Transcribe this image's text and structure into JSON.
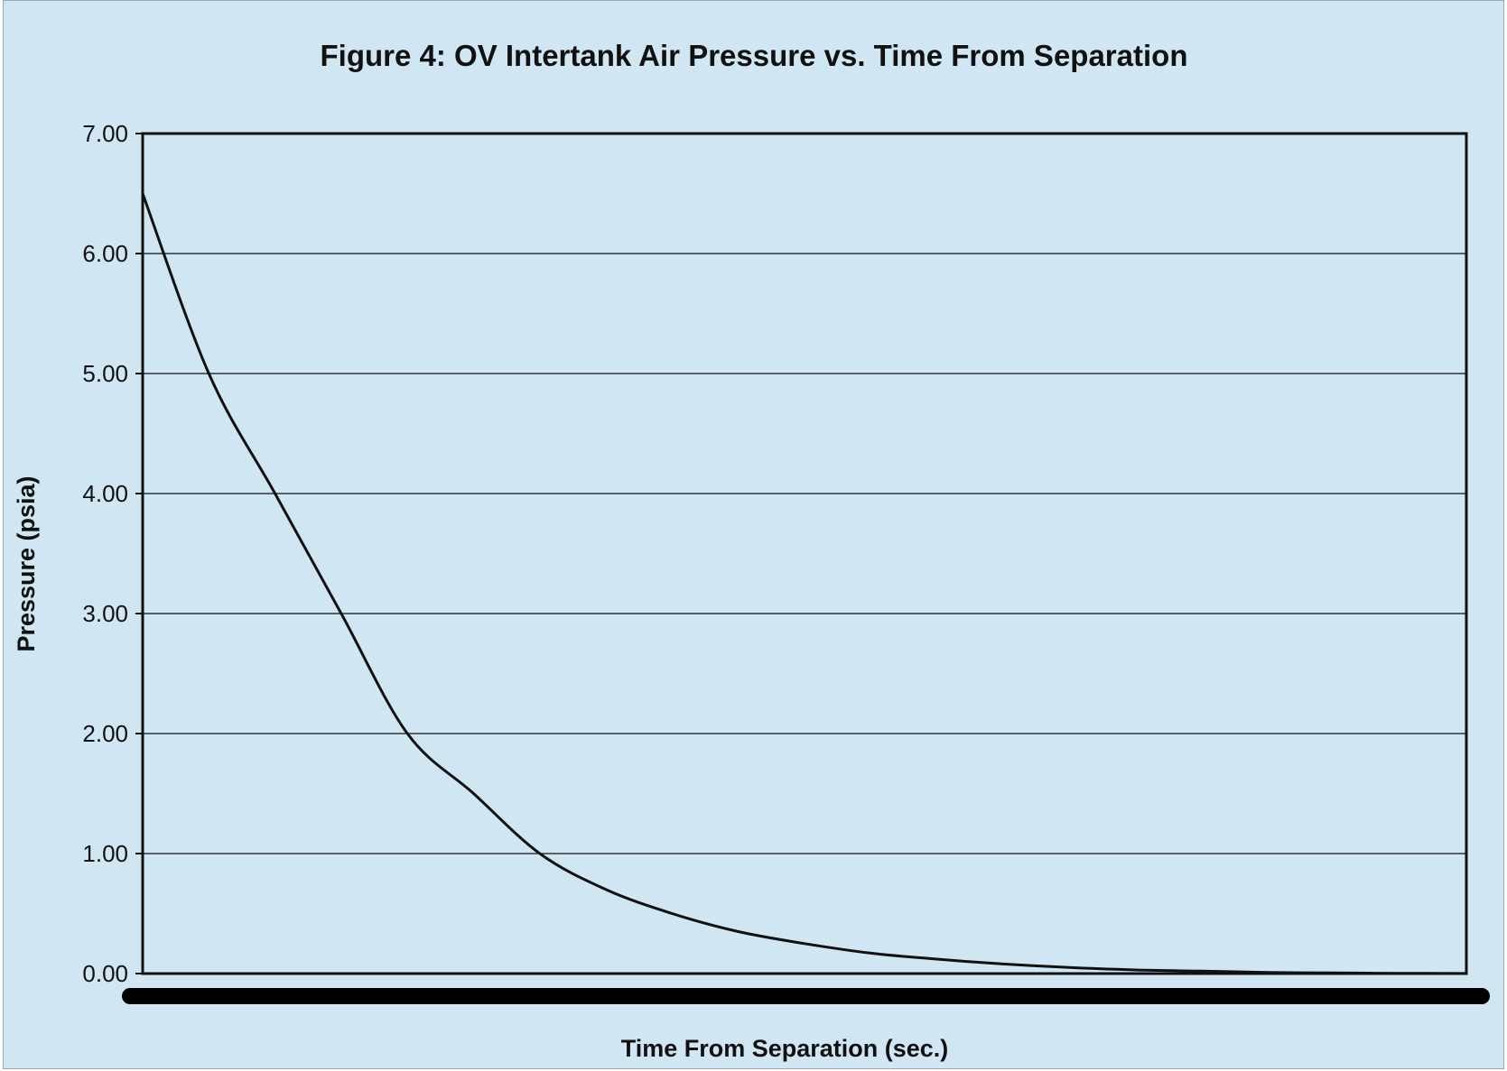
{
  "chart_data": {
    "type": "line",
    "title": "Figure 4: OV Intertank Air Pressure vs. Time From Separation",
    "xlabel": "Time From Separation (sec.)",
    "ylabel": "Pressure (psia)",
    "ylim": [
      0,
      7
    ],
    "yticks": [
      "0.00",
      "1.00",
      "2.00",
      "3.00",
      "4.00",
      "5.00",
      "6.00",
      "7.00"
    ],
    "x_tick_labels_visible": false,
    "grid": "horizontal",
    "legend": "none",
    "series": [
      {
        "values": [
          6.5,
          5.0,
          4.0,
          3.0,
          2.0,
          1.5,
          1.0,
          0.7,
          0.5,
          0.35,
          0.25,
          0.17,
          0.12,
          0.08,
          0.05,
          0.03,
          0.02,
          0.01,
          0.005,
          0.002,
          0.001
        ],
        "color": "#111111"
      }
    ]
  },
  "colors": {
    "background": "#d1e6f3",
    "line": "#111111",
    "grid": "#111111"
  }
}
